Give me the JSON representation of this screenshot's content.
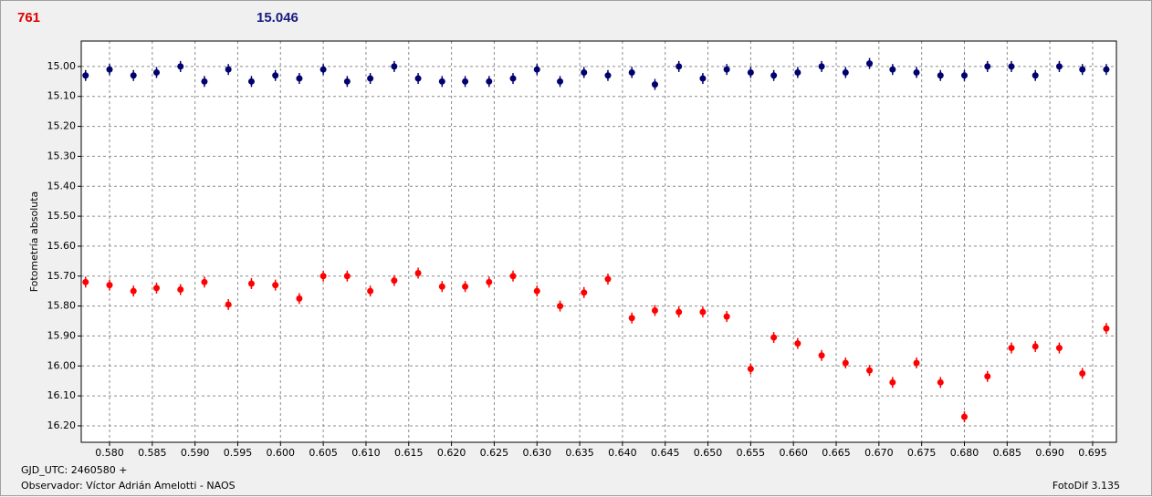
{
  "chart_data": {
    "type": "scatter",
    "header_left": "761",
    "header_right": "15.046",
    "y_label": "Fotometría absoluta",
    "x_label": "GJD_UTC: 2460580 +",
    "footer_left": "Observador: Víctor Adrián Amelotti - NAOS",
    "footer_right": "FotoDif 3.135",
    "xlim": [
      0.57669,
      0.69778
    ],
    "ylim": [
      14.915,
      16.255
    ],
    "y_inverted": true,
    "grid": true,
    "xticks": [
      {
        "value": 0.58,
        "label": "0.580"
      },
      {
        "value": 0.585,
        "label": "0.585"
      },
      {
        "value": 0.59,
        "label": "0.590"
      },
      {
        "value": 0.595,
        "label": "0.595"
      },
      {
        "value": 0.6,
        "label": "0.600"
      },
      {
        "value": 0.605,
        "label": "0.605"
      },
      {
        "value": 0.61,
        "label": "0.610"
      },
      {
        "value": 0.615,
        "label": "0.615"
      },
      {
        "value": 0.62,
        "label": "0.620"
      },
      {
        "value": 0.625,
        "label": "0.625"
      },
      {
        "value": 0.63,
        "label": "0.630"
      },
      {
        "value": 0.635,
        "label": "0.635"
      },
      {
        "value": 0.64,
        "label": "0.640"
      },
      {
        "value": 0.645,
        "label": "0.645"
      },
      {
        "value": 0.65,
        "label": "0.650"
      },
      {
        "value": 0.655,
        "label": "0.655"
      },
      {
        "value": 0.66,
        "label": "0.660"
      },
      {
        "value": 0.665,
        "label": "0.665"
      },
      {
        "value": 0.67,
        "label": "0.670"
      },
      {
        "value": 0.675,
        "label": "0.675"
      },
      {
        "value": 0.68,
        "label": "0.680"
      },
      {
        "value": 0.685,
        "label": "0.685"
      },
      {
        "value": 0.69,
        "label": "0.690"
      },
      {
        "value": 0.695,
        "label": "0.695"
      }
    ],
    "yticks": [
      {
        "value": 15.0,
        "label": "15.00"
      },
      {
        "value": 15.1,
        "label": "15.10"
      },
      {
        "value": 15.2,
        "label": "15.20"
      },
      {
        "value": 15.3,
        "label": "15.30"
      },
      {
        "value": 15.4,
        "label": "15.40"
      },
      {
        "value": 15.5,
        "label": "15.50"
      },
      {
        "value": 15.6,
        "label": "15.60"
      },
      {
        "value": 15.7,
        "label": "15.70"
      },
      {
        "value": 15.8,
        "label": "15.80"
      },
      {
        "value": 15.9,
        "label": "15.90"
      },
      {
        "value": 16.0,
        "label": "16.00"
      },
      {
        "value": 16.1,
        "label": "16.10"
      },
      {
        "value": 16.2,
        "label": "16.20"
      }
    ],
    "x": [
      0.5772,
      0.58,
      0.5828,
      0.5855,
      0.5883,
      0.5911,
      0.5939,
      0.5966,
      0.5994,
      0.6022,
      0.605,
      0.6078,
      0.6105,
      0.6133,
      0.6161,
      0.6189,
      0.6216,
      0.6244,
      0.6272,
      0.63,
      0.6327,
      0.6355,
      0.6383,
      0.6411,
      0.6438,
      0.6466,
      0.6494,
      0.6522,
      0.655,
      0.6577,
      0.6605,
      0.6633,
      0.6661,
      0.6689,
      0.6716,
      0.6744,
      0.6772,
      0.68,
      0.6827,
      0.6855,
      0.6883,
      0.6911,
      0.6938,
      0.6966
    ],
    "series": [
      {
        "color": "#00006e",
        "values": [
          15.03,
          15.01,
          15.03,
          15.02,
          15.0,
          15.05,
          15.01,
          15.05,
          15.03,
          15.04,
          15.01,
          15.05,
          15.04,
          15.0,
          15.04,
          15.05,
          15.05,
          15.05,
          15.04,
          15.01,
          15.05,
          15.02,
          15.03,
          15.02,
          15.06,
          15.0,
          15.04,
          15.01,
          15.02,
          15.03,
          15.02,
          15.0,
          15.02,
          14.99,
          15.01,
          15.02,
          15.03,
          15.03,
          15.0,
          15.0,
          15.03,
          15.0,
          15.01,
          15.01
        ]
      },
      {
        "color": "#ff0000",
        "values": [
          15.72,
          15.73,
          15.75,
          15.74,
          15.745,
          15.72,
          15.795,
          15.725,
          15.73,
          15.775,
          15.7,
          15.7,
          15.75,
          15.715,
          15.69,
          15.735,
          15.735,
          15.72,
          15.7,
          15.75,
          15.8,
          15.755,
          15.71,
          15.84,
          15.815,
          15.82,
          15.82,
          15.835,
          16.01,
          15.905,
          15.925,
          15.965,
          15.99,
          16.015,
          16.055,
          15.99,
          16.055,
          16.17,
          16.035,
          15.94,
          15.935,
          15.94,
          16.025,
          15.875
        ]
      }
    ]
  }
}
